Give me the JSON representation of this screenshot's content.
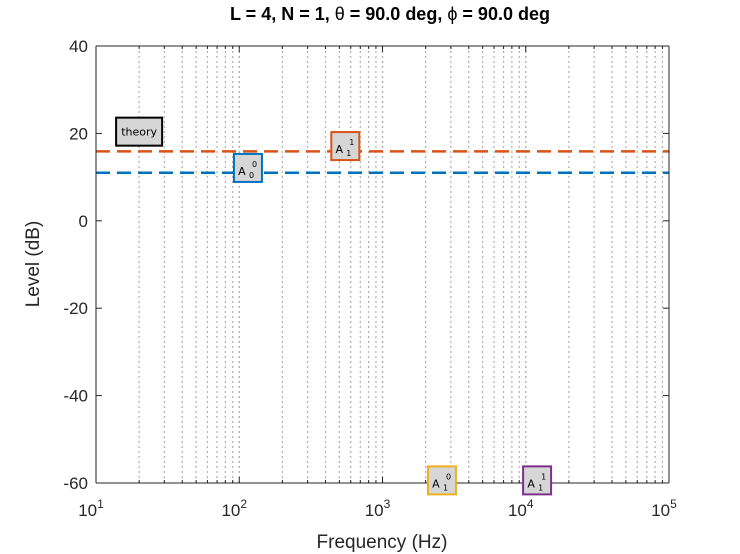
{
  "chart_data": {
    "type": "line",
    "title_parts": {
      "a": "L = 4, N = 1, ",
      "theta": "θ",
      "b": " = 90.0 deg, ",
      "phi": "ϕ",
      "c": "  = 90.0 deg"
    },
    "xlabel": "Frequency (Hz)",
    "ylabel": "Level (dB)",
    "xscale": "log",
    "xlim": [
      10,
      100000
    ],
    "ylim": [
      -60,
      40
    ],
    "grid": "x-minor-dotted",
    "x_ticks": [
      {
        "value": 10,
        "base": "10",
        "exp": "1"
      },
      {
        "value": 100,
        "base": "10",
        "exp": "2"
      },
      {
        "value": 1000,
        "base": "10",
        "exp": "3"
      },
      {
        "value": 10000,
        "base": "10",
        "exp": "4"
      },
      {
        "value": 100000,
        "base": "10",
        "exp": "5"
      }
    ],
    "y_ticks": [
      {
        "value": 40,
        "label": "40"
      },
      {
        "value": 20,
        "label": "20"
      },
      {
        "value": 0,
        "label": "0"
      },
      {
        "value": -20,
        "label": "-20"
      },
      {
        "value": -40,
        "label": "-40"
      },
      {
        "value": -60,
        "label": "-60"
      }
    ],
    "series": [
      {
        "values": [
          15.9,
          15.9
        ],
        "x": [
          10,
          100000
        ],
        "color": "#d95319",
        "style": "dashed"
      },
      {
        "values": [
          11.0,
          11.0
        ],
        "x": [
          10,
          100000
        ],
        "color": "#0072bd",
        "style": "dashed"
      }
    ],
    "annotations": [
      {
        "label": "theory",
        "x": 20,
        "y": 20.4,
        "color": "#000000"
      },
      {
        "label": "A",
        "sup": "0",
        "sub": "0",
        "x": 115,
        "y": 12.1,
        "color": "#0072bd"
      },
      {
        "label": "A",
        "sup": "1",
        "sub": "1",
        "x": 550,
        "y": 17.1,
        "color": "#d95319"
      },
      {
        "label": "A",
        "sup": "0",
        "sub": "1",
        "x": 2600,
        "y": -59.4,
        "color": "#edb120"
      },
      {
        "label": "A",
        "sup": "1",
        "sub": "1",
        "x": 12000,
        "y": -59.4,
        "color": "#7e2f8e"
      }
    ]
  }
}
